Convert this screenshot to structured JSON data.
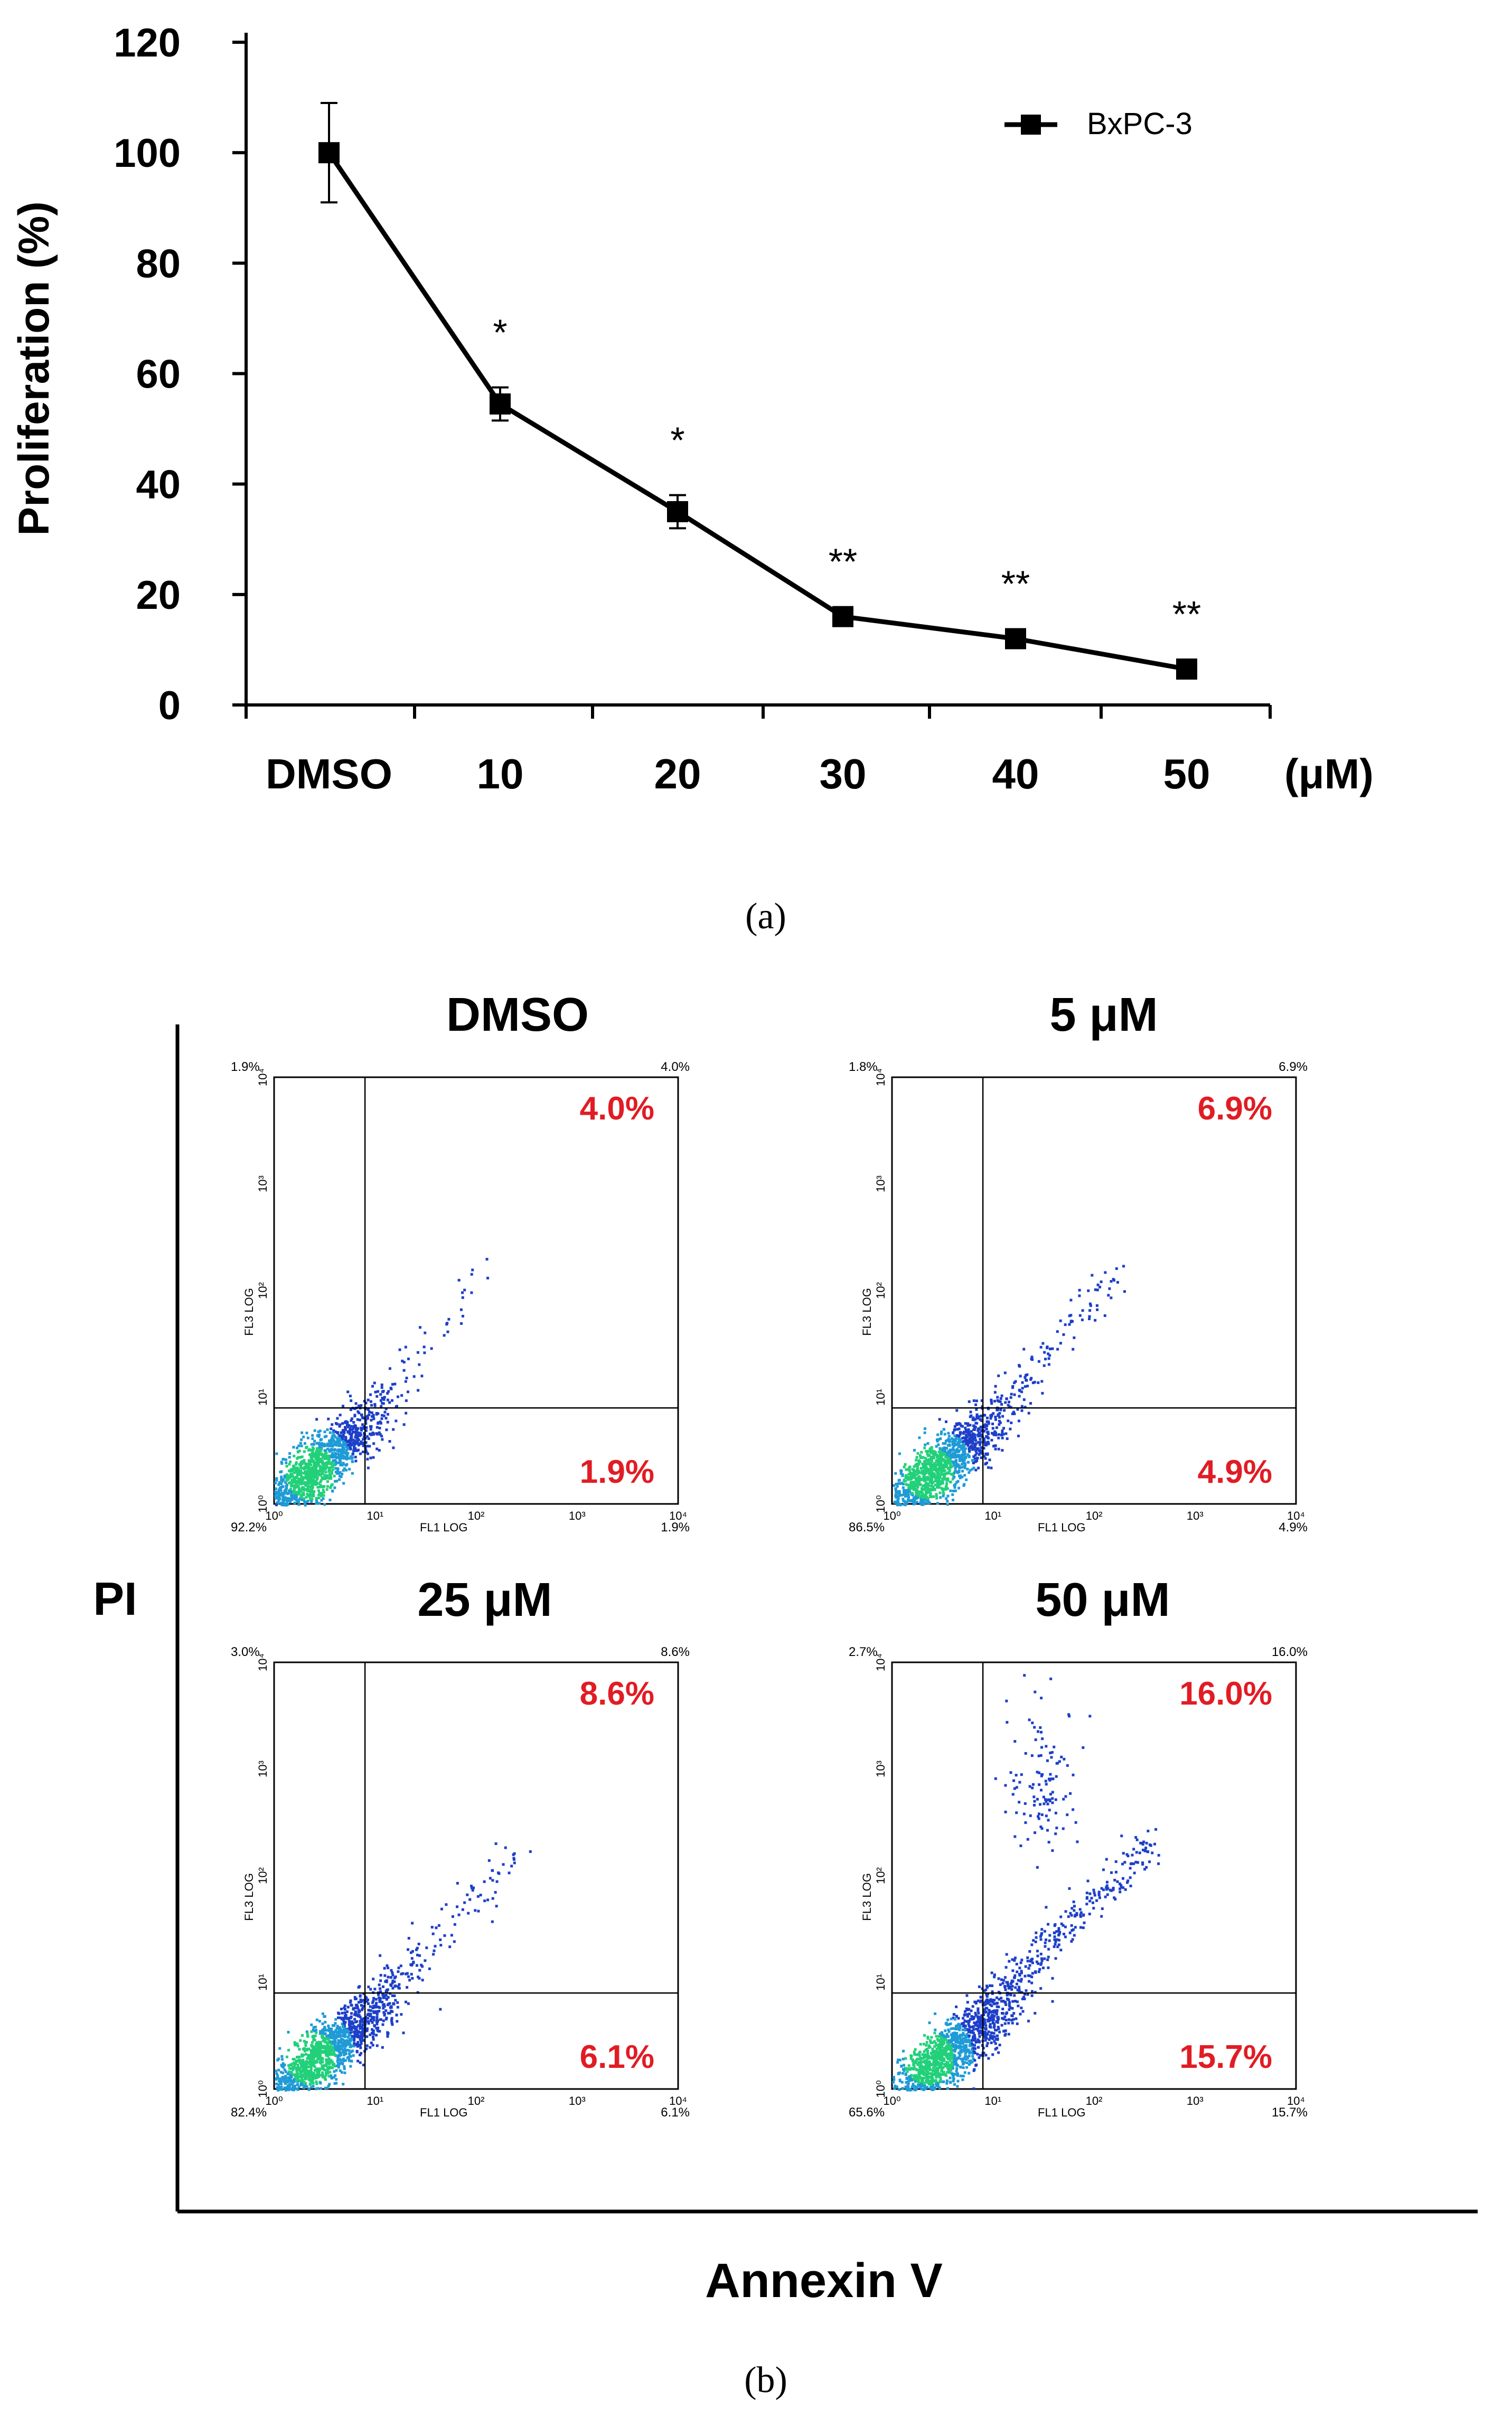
{
  "panel_a_label": "(a)",
  "panel_b_label": "(b)",
  "chart_data": [
    {
      "type": "line",
      "ylabel": "Proliferation (%)",
      "x_unit_label": "(μM)",
      "categories": [
        "DMSO",
        "10",
        "20",
        "30",
        "40",
        "50"
      ],
      "series": [
        {
          "name": "BxPC-3",
          "color": "#000000",
          "values": [
            100,
            54.5,
            35,
            16,
            12,
            6.5
          ],
          "errors": [
            9,
            3,
            3,
            0,
            0,
            0
          ]
        }
      ],
      "significance": [
        "",
        "*",
        "*",
        "**",
        "**",
        "**"
      ],
      "ylim": [
        0,
        120
      ],
      "yticks": [
        "0",
        "20",
        "40",
        "60",
        "80",
        "100",
        "120"
      ],
      "legend_position": "top-right",
      "grid": false
    },
    {
      "type": "scatter",
      "subtype": "flow-cytometry-quadrant-plots",
      "xlabel": "Annexin V",
      "ylabel": "PI",
      "axis_log_range": [
        0,
        4
      ],
      "x_axis_title": "FL1 LOG",
      "y_axis_title": "FL3 LOG",
      "tick_labels": [
        "10⁰",
        "10¹",
        "10²",
        "10³",
        "10⁴"
      ],
      "gate_x_log": 0.9,
      "gate_y_log": 0.9,
      "highlight_color": "#e11c24",
      "plots": [
        {
          "title": "DMSO",
          "q_ul": "1.9%",
          "q_ur": "4.0%",
          "q_ll": "92.2%",
          "q_lr": "1.9%",
          "ur_highlight": "4.0%",
          "lr_highlight": "1.9%"
        },
        {
          "title": "5 μM",
          "q_ul": "1.8%",
          "q_ur": "6.9%",
          "q_ll": "86.5%",
          "q_lr": "4.9%",
          "ur_highlight": "6.9%",
          "lr_highlight": "4.9%"
        },
        {
          "title": "25 μM",
          "q_ul": "3.0%",
          "q_ur": "8.6%",
          "q_ll": "82.4%",
          "q_lr": "6.1%",
          "ur_highlight": "8.6%",
          "lr_highlight": "6.1%"
        },
        {
          "title": "50 μM",
          "q_ul": "2.7%",
          "q_ur": "16.0%",
          "q_ll": "65.6%",
          "q_lr": "15.7%",
          "ur_highlight": "16.0%",
          "lr_highlight": "15.7%"
        }
      ]
    }
  ]
}
